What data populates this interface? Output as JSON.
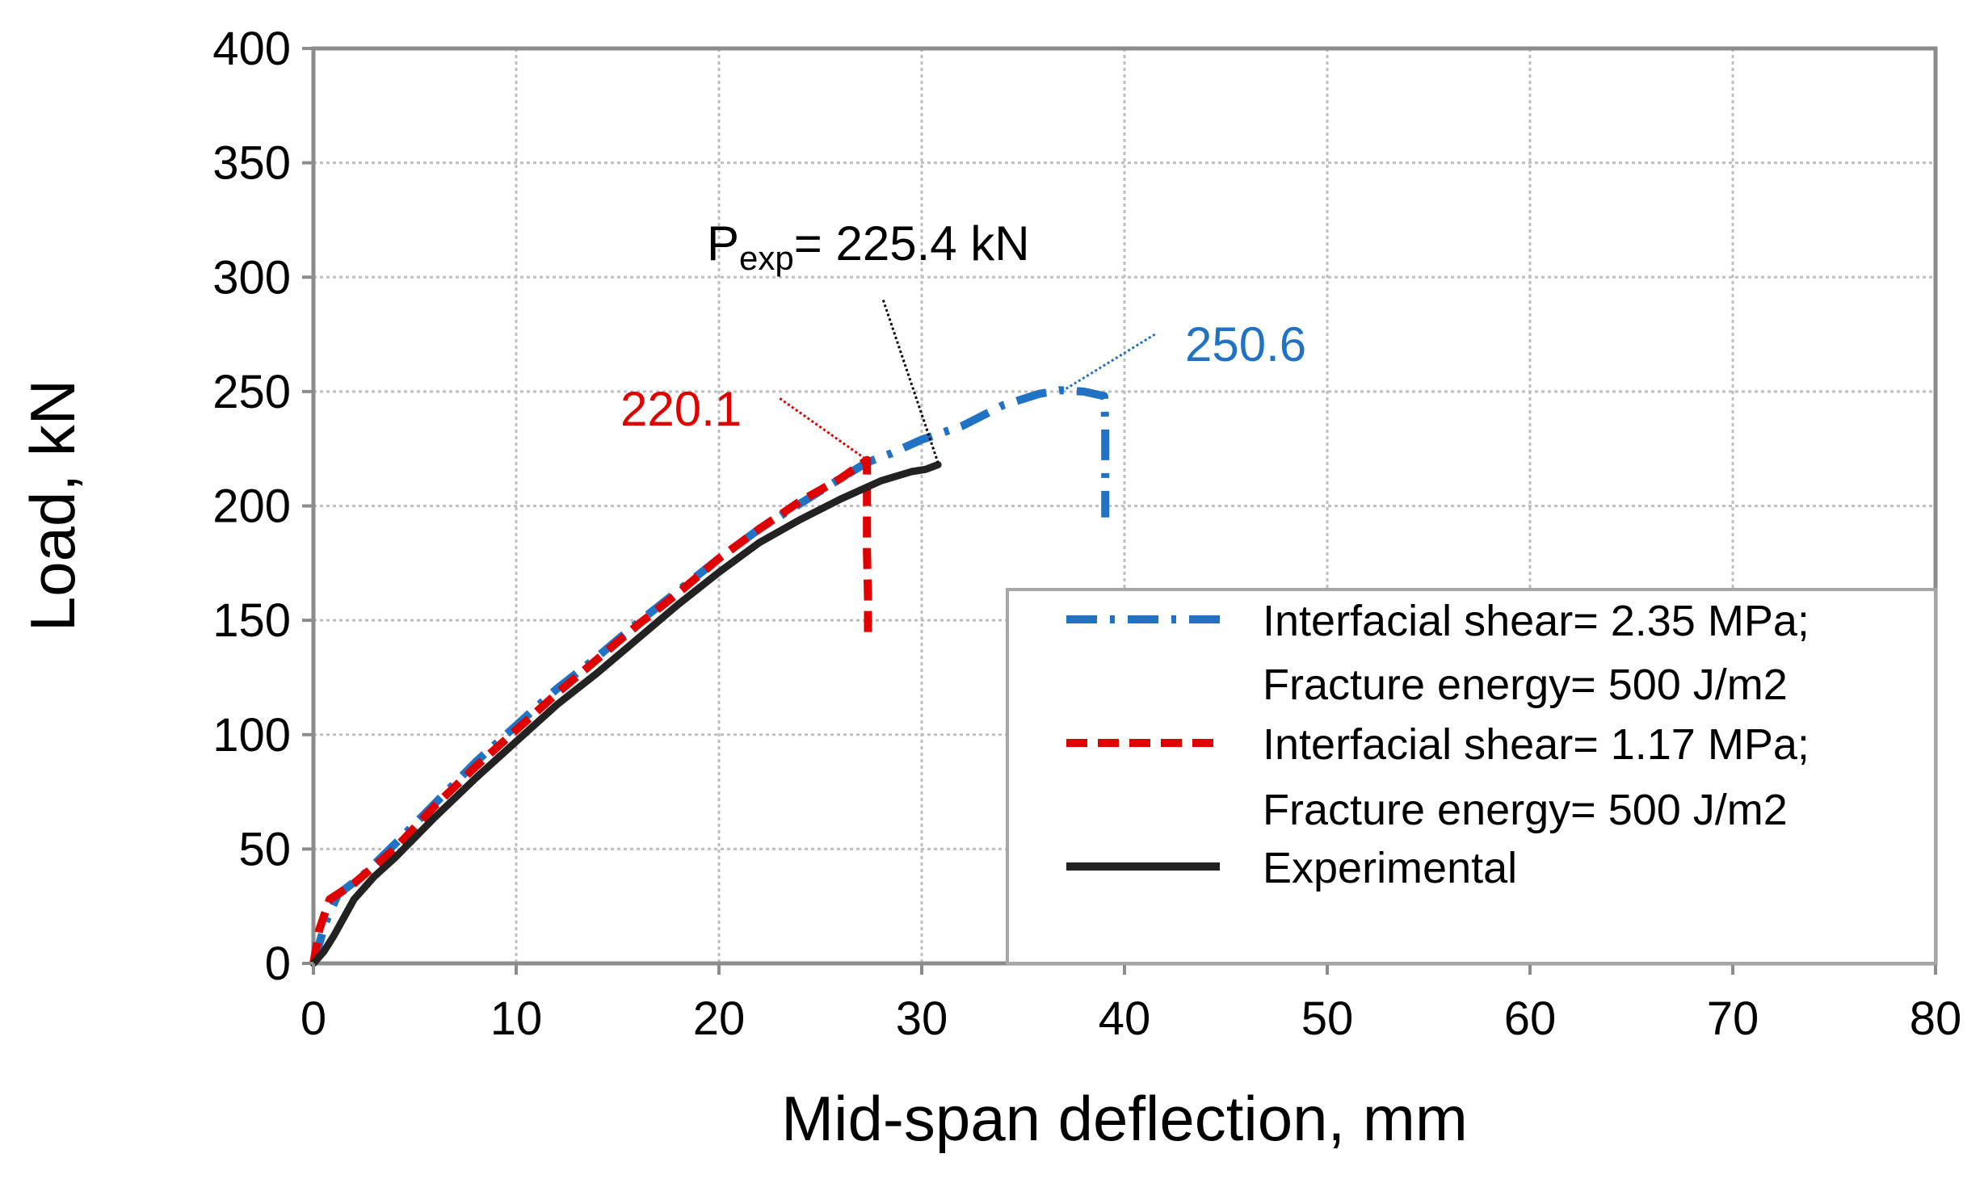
{
  "chart_data": {
    "type": "line",
    "title": "",
    "xlabel": "Mid-span deflection, mm",
    "ylabel": "Load, kN",
    "xlim": [
      0,
      80
    ],
    "ylim": [
      0,
      400
    ],
    "xticks": [
      0,
      10,
      20,
      30,
      40,
      50,
      60,
      70,
      80
    ],
    "yticks": [
      0,
      50,
      100,
      150,
      200,
      250,
      300,
      350,
      400
    ],
    "grid": true,
    "colors": {
      "blue": "#1F72C4",
      "red": "#E00000",
      "black": "#222222",
      "grid": "#BFBFBF",
      "frame": "#8C8C8C"
    },
    "legend": {
      "position": "bottom-right",
      "entries": [
        {
          "key": "blue",
          "line1": "Interfacial shear= 2.35 MPa;",
          "line2": "Fracture energy= 500 J/m2",
          "style": "dash-dot"
        },
        {
          "key": "red",
          "line1": "Interfacial shear= 1.17 MPa;",
          "line2": "Fracture energy= 500 J/m2",
          "style": "dash"
        },
        {
          "key": "black",
          "line1": "Experimental",
          "line2": "",
          "style": "solid"
        }
      ]
    },
    "series": [
      {
        "key": "blue",
        "name": "Interfacial shear= 2.35 MPa; Fracture energy= 500 J/m2",
        "points": [
          [
            0,
            0
          ],
          [
            0.6,
            18
          ],
          [
            1.2,
            30
          ],
          [
            2.5,
            39
          ],
          [
            4,
            52
          ],
          [
            6,
            70
          ],
          [
            8,
            88
          ],
          [
            10,
            104
          ],
          [
            12,
            120
          ],
          [
            14,
            134
          ],
          [
            16,
            149
          ],
          [
            18,
            163
          ],
          [
            20,
            177
          ],
          [
            22,
            190
          ],
          [
            24,
            201
          ],
          [
            26,
            212
          ],
          [
            27.3,
            219
          ],
          [
            28.5,
            223
          ],
          [
            30,
            229
          ],
          [
            32,
            235
          ],
          [
            34,
            244
          ],
          [
            35.8,
            249
          ],
          [
            36.8,
            250.6
          ],
          [
            38,
            250
          ],
          [
            39,
            248
          ],
          [
            39.05,
            236
          ],
          [
            39.05,
            222
          ],
          [
            39.05,
            195
          ]
        ]
      },
      {
        "key": "red",
        "name": "Interfacial shear= 1.17 MPa; Fracture energy= 500 J/m2",
        "points": [
          [
            0,
            0
          ],
          [
            0.3,
            15
          ],
          [
            0.8,
            28
          ],
          [
            2,
            35
          ],
          [
            4,
            50
          ],
          [
            6,
            69
          ],
          [
            8,
            86
          ],
          [
            10,
            102
          ],
          [
            12,
            118
          ],
          [
            14,
            133
          ],
          [
            16,
            148
          ],
          [
            18,
            162
          ],
          [
            20,
            177
          ],
          [
            22,
            190
          ],
          [
            24,
            202
          ],
          [
            26,
            212
          ],
          [
            27.3,
            220.1
          ],
          [
            27.3,
            205
          ],
          [
            27.3,
            180
          ],
          [
            27.35,
            160
          ],
          [
            27.35,
            142
          ]
        ]
      },
      {
        "key": "black",
        "name": "Experimental",
        "points": [
          [
            0,
            0
          ],
          [
            0.5,
            5
          ],
          [
            1,
            12
          ],
          [
            2,
            28
          ],
          [
            3,
            38
          ],
          [
            4,
            46
          ],
          [
            6,
            64
          ],
          [
            8,
            81
          ],
          [
            10,
            97
          ],
          [
            12,
            113
          ],
          [
            14,
            127
          ],
          [
            16,
            142
          ],
          [
            18,
            157
          ],
          [
            20,
            171
          ],
          [
            22,
            184
          ],
          [
            24,
            194
          ],
          [
            26,
            203
          ],
          [
            28,
            211
          ],
          [
            29.5,
            215
          ],
          [
            30.2,
            216
          ],
          [
            30.8,
            218
          ]
        ]
      }
    ],
    "annotations": [
      {
        "key": "exp",
        "label_main": "P",
        "label_sub": "exp",
        "label_rest": "= 225.4 kN",
        "color": "#000000",
        "from": [
          28.1,
          290
        ],
        "to": [
          30.8,
          219
        ]
      },
      {
        "key": "red",
        "label": "220.1",
        "color": "#E00000",
        "from": [
          23,
          247
        ],
        "to": [
          27.3,
          220.1
        ]
      },
      {
        "key": "blue",
        "label": "250.6",
        "color": "#1F72C4",
        "from": [
          41.5,
          275
        ],
        "to": [
          37,
          250.6
        ]
      }
    ]
  }
}
